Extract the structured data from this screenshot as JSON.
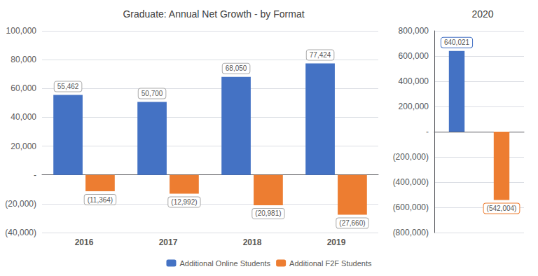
{
  "chart_data": [
    {
      "type": "bar",
      "title": "Graduate: Annual Net Growth - by Format",
      "categories": [
        "2016",
        "2017",
        "2018",
        "2019"
      ],
      "series": [
        {
          "name": "Additional Online Students",
          "color": "#4472C4",
          "values": [
            55462,
            50700,
            68050,
            77424
          ],
          "value_labels": [
            "55,462",
            "50,700",
            "68,050",
            "77,424"
          ]
        },
        {
          "name": "Additional F2F Students",
          "color": "#ED7D31",
          "values": [
            -11364,
            -12992,
            -20981,
            -27660
          ],
          "value_labels": [
            "(11,364)",
            "(12,992)",
            "(20,981)",
            "(27,660)"
          ]
        }
      ],
      "ylim": [
        -40000,
        100000
      ],
      "yticks": [
        {
          "value": -40000,
          "label": "(40,000)"
        },
        {
          "value": -20000,
          "label": "(20,000)"
        },
        {
          "value": 0,
          "label": "-"
        },
        {
          "value": 20000,
          "label": "20,000"
        },
        {
          "value": 40000,
          "label": "40,000"
        },
        {
          "value": 60000,
          "label": "60,000"
        },
        {
          "value": 80000,
          "label": "80,000"
        },
        {
          "value": 100000,
          "label": "100,000"
        }
      ],
      "grid": true,
      "legend": "bottom",
      "data_labels": true
    },
    {
      "type": "bar",
      "title": "2020",
      "categories": [
        null,
        null
      ],
      "values": [
        640021,
        -542004
      ],
      "value_labels": [
        "640,021",
        "(542,004)"
      ],
      "colors": [
        "#4472C4",
        "#ED7D31"
      ],
      "ylim": [
        -800000,
        800000
      ],
      "yticks": [
        {
          "value": -800000,
          "label": "(800,000)"
        },
        {
          "value": -600000,
          "label": "(600,000)"
        },
        {
          "value": -400000,
          "label": "(400,000)"
        },
        {
          "value": -200000,
          "label": "(200,000)"
        },
        {
          "value": 0,
          "label": "-"
        },
        {
          "value": 200000,
          "label": "200,000"
        },
        {
          "value": 400000,
          "label": "400,000"
        },
        {
          "value": 600000,
          "label": "600,000"
        },
        {
          "value": 800000,
          "label": "800,000"
        }
      ],
      "grid": true,
      "data_labels": true,
      "tick_labels": "y"
    }
  ]
}
